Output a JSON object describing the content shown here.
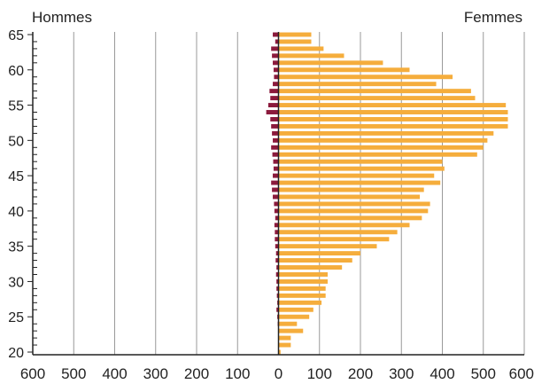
{
  "chart_data": {
    "type": "bar",
    "orientation": "horizontal",
    "layout": "population-pyramid",
    "title": "",
    "left_label": "Hommes",
    "right_label": "Femmes",
    "xlabel": "",
    "ylabel": "",
    "xlim": [
      -600,
      600
    ],
    "ylim": [
      20,
      65
    ],
    "x_ticks": [
      -600,
      -500,
      -400,
      -300,
      -200,
      -100,
      0,
      100,
      200,
      300,
      400,
      500,
      600
    ],
    "x_tick_labels": [
      "600",
      "500",
      "400",
      "300",
      "200",
      "100",
      "0",
      "100",
      "200",
      "300",
      "400",
      "500",
      "600"
    ],
    "y_ticks": [
      20,
      25,
      30,
      35,
      40,
      45,
      50,
      55,
      60,
      65
    ],
    "y_tick_labels": [
      "20",
      "25",
      "30",
      "35",
      "40",
      "45",
      "50",
      "55",
      "60",
      "65"
    ],
    "grid": "vertical",
    "colors": {
      "men": "#8b1a3c",
      "women": "#f5ad3c",
      "grid": "#999999",
      "axis": "#222222"
    },
    "ages": [
      20,
      21,
      22,
      23,
      24,
      25,
      26,
      27,
      28,
      29,
      30,
      31,
      32,
      33,
      34,
      35,
      36,
      37,
      38,
      39,
      40,
      41,
      42,
      43,
      44,
      45,
      46,
      47,
      48,
      49,
      50,
      51,
      52,
      53,
      54,
      55,
      56,
      57,
      58,
      59,
      60,
      61,
      62,
      63,
      64,
      65
    ],
    "series": [
      {
        "name": "Hommes",
        "values": [
          0,
          0,
          0,
          0,
          2,
          3,
          5,
          3,
          4,
          5,
          5,
          6,
          5,
          7,
          6,
          8,
          9,
          9,
          10,
          8,
          10,
          11,
          14,
          16,
          18,
          14,
          12,
          13,
          15,
          18,
          14,
          16,
          18,
          20,
          30,
          25,
          20,
          22,
          14,
          11,
          12,
          14,
          16,
          18,
          8,
          14
        ]
      },
      {
        "name": "Femmes",
        "values": [
          5,
          30,
          30,
          60,
          45,
          75,
          85,
          105,
          115,
          115,
          120,
          120,
          155,
          180,
          200,
          240,
          270,
          290,
          320,
          350,
          365,
          370,
          345,
          355,
          395,
          380,
          405,
          400,
          485,
          500,
          510,
          525,
          560,
          560,
          560,
          555,
          480,
          470,
          385,
          425,
          320,
          255,
          160,
          110,
          80,
          80
        ]
      }
    ]
  }
}
